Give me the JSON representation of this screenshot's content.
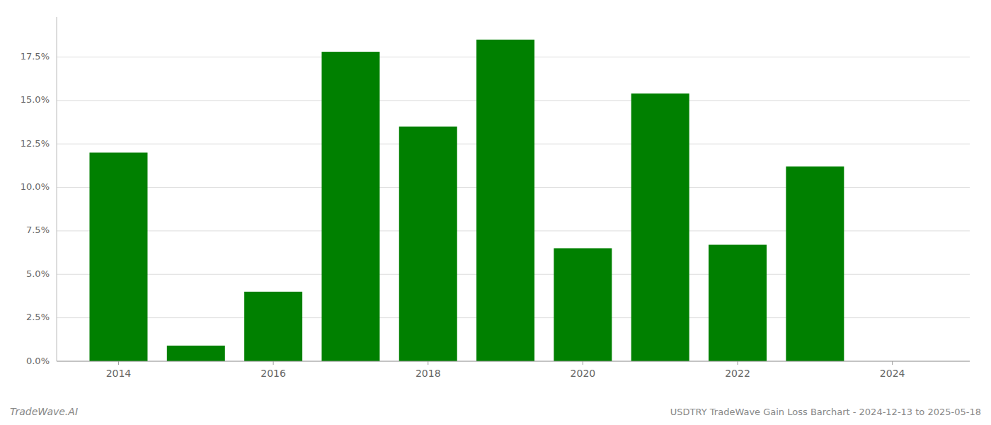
{
  "chart_data": {
    "type": "bar",
    "title": "USDTRY TradeWave Gain Loss Barchart - 2024-12-13 to 2025-05-18",
    "annotations": [
      "TradeWave.AI"
    ],
    "x": [
      2014,
      2015,
      2016,
      2017,
      2018,
      2019,
      2020,
      2021,
      2022,
      2023
    ],
    "values": [
      0.12,
      0.009,
      0.04,
      0.178,
      0.135,
      0.185,
      0.065,
      0.154,
      0.067,
      0.112
    ],
    "color": "#008000",
    "xlim": [
      2013.2,
      2025.0
    ],
    "xticks": [
      2014,
      2016,
      2018,
      2020,
      2022,
      2024
    ],
    "ylim": [
      0.0,
      0.198
    ],
    "yticks": [
      {
        "value": 0.0,
        "label": "0.0%"
      },
      {
        "value": 0.025,
        "label": "2.5%"
      },
      {
        "value": 0.05,
        "label": "5.0%"
      },
      {
        "value": 0.075,
        "label": "7.5%"
      },
      {
        "value": 0.1,
        "label": "10.0%"
      },
      {
        "value": 0.125,
        "label": "12.5%"
      },
      {
        "value": 0.15,
        "label": "15.0%"
      },
      {
        "value": 0.175,
        "label": "17.5%"
      }
    ],
    "grid": true
  }
}
